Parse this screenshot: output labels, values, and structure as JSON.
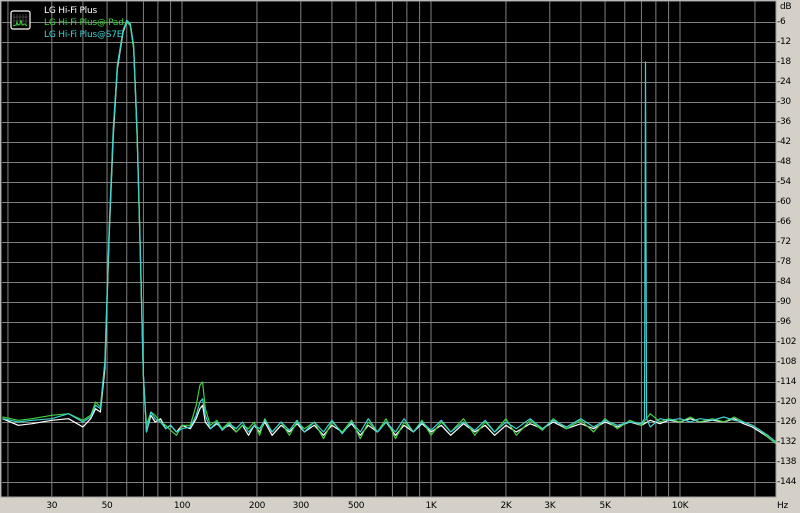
{
  "chart_data": {
    "type": "line",
    "title": "",
    "xlabel": "Hz",
    "ylabel": "dB",
    "x_scale": "log",
    "xlim": [
      19,
      24300
    ],
    "ylim": [
      -149,
      0
    ],
    "grid": true,
    "legend_placement": "top-left",
    "background_color": "#000000",
    "grid_color": "#808080",
    "x_ticks": [
      {
        "value": 30,
        "label": "30"
      },
      {
        "value": 50,
        "label": "50"
      },
      {
        "value": 100,
        "label": "100"
      },
      {
        "value": 200,
        "label": "200"
      },
      {
        "value": 300,
        "label": "300"
      },
      {
        "value": 500,
        "label": "500"
      },
      {
        "value": 1000,
        "label": "1K"
      },
      {
        "value": 2000,
        "label": "2K"
      },
      {
        "value": 3000,
        "label": "3K"
      },
      {
        "value": 5000,
        "label": "5K"
      },
      {
        "value": 10000,
        "label": "10K"
      }
    ],
    "x_gridlines": [
      20,
      30,
      40,
      50,
      60,
      70,
      80,
      90,
      100,
      200,
      300,
      400,
      500,
      600,
      700,
      800,
      900,
      1000,
      2000,
      3000,
      4000,
      5000,
      6000,
      7000,
      8000,
      9000,
      10000,
      20000
    ],
    "y_ticks": [
      -6,
      -12,
      -18,
      -24,
      -30,
      -36,
      -42,
      -48,
      -54,
      -60,
      -66,
      -72,
      -78,
      -84,
      -90,
      -96,
      -102,
      -108,
      -114,
      -120,
      -126,
      -132,
      -138,
      -144
    ],
    "y_tick_labels": [
      "-6",
      "-12",
      "-18",
      "-24",
      "-30",
      "-36",
      "-42",
      "-48",
      "-54",
      "-60",
      "-66",
      "-72",
      "-78",
      "-84",
      "-90",
      "-96",
      "-102",
      "-108",
      "-114",
      "-120",
      "-126",
      "-132",
      "-138",
      "-144"
    ],
    "series": [
      {
        "name": "LG Hi-Fi Plus",
        "color": "#ffffff",
        "points": [
          [
            19,
            -125
          ],
          [
            22,
            -127
          ],
          [
            25,
            -126.5
          ],
          [
            30,
            -125.5
          ],
          [
            35,
            -125
          ],
          [
            40,
            -127.5
          ],
          [
            43,
            -125
          ],
          [
            45,
            -122
          ],
          [
            47,
            -123
          ],
          [
            49,
            -110
          ],
          [
            51,
            -70
          ],
          [
            53,
            -40
          ],
          [
            55,
            -20
          ],
          [
            58,
            -9
          ],
          [
            60,
            -6
          ],
          [
            62,
            -7
          ],
          [
            64,
            -14
          ],
          [
            66,
            -40
          ],
          [
            68,
            -75
          ],
          [
            70,
            -112
          ],
          [
            72,
            -129
          ],
          [
            75,
            -124
          ],
          [
            78,
            -126
          ],
          [
            82,
            -125
          ],
          [
            86,
            -128
          ],
          [
            90,
            -127
          ],
          [
            95,
            -129
          ],
          [
            100,
            -127
          ],
          [
            108,
            -128
          ],
          [
            114,
            -125
          ],
          [
            118,
            -122
          ],
          [
            121,
            -121
          ],
          [
            124,
            -126
          ],
          [
            130,
            -128
          ],
          [
            138,
            -126.5
          ],
          [
            145,
            -128
          ],
          [
            155,
            -127
          ],
          [
            165,
            -129
          ],
          [
            175,
            -127
          ],
          [
            185,
            -130
          ],
          [
            195,
            -127
          ],
          [
            205,
            -129
          ],
          [
            215,
            -126
          ],
          [
            230,
            -130
          ],
          [
            250,
            -127
          ],
          [
            270,
            -129
          ],
          [
            290,
            -126.5
          ],
          [
            310,
            -129
          ],
          [
            340,
            -127
          ],
          [
            370,
            -130
          ],
          [
            400,
            -127
          ],
          [
            440,
            -129
          ],
          [
            480,
            -126.5
          ],
          [
            520,
            -130
          ],
          [
            560,
            -127
          ],
          [
            610,
            -129
          ],
          [
            660,
            -126
          ],
          [
            720,
            -130
          ],
          [
            780,
            -127
          ],
          [
            850,
            -129
          ],
          [
            920,
            -126.5
          ],
          [
            1000,
            -129
          ],
          [
            1100,
            -127
          ],
          [
            1200,
            -130
          ],
          [
            1350,
            -126.5
          ],
          [
            1500,
            -129
          ],
          [
            1650,
            -127
          ],
          [
            1800,
            -130
          ],
          [
            2000,
            -127
          ],
          [
            2200,
            -129
          ],
          [
            2500,
            -126.5
          ],
          [
            2800,
            -128
          ],
          [
            3100,
            -126
          ],
          [
            3500,
            -128
          ],
          [
            4000,
            -126.5
          ],
          [
            4500,
            -128
          ],
          [
            5000,
            -126
          ],
          [
            5600,
            -127.5
          ],
          [
            6300,
            -126
          ],
          [
            7000,
            -127
          ],
          [
            7600,
            -125.5
          ],
          [
            8300,
            -126.5
          ],
          [
            9000,
            -125.5
          ],
          [
            10000,
            -126
          ],
          [
            11000,
            -125
          ],
          [
            12000,
            -126
          ],
          [
            13500,
            -125.5
          ],
          [
            15000,
            -126
          ],
          [
            16500,
            -125
          ],
          [
            18000,
            -126.5
          ],
          [
            19500,
            -127.5
          ],
          [
            21000,
            -129
          ],
          [
            22500,
            -130.5
          ],
          [
            24300,
            -132.5
          ]
        ]
      },
      {
        "name": "LG Hi-Fi Plus@iPad",
        "color": "#40d040",
        "points": [
          [
            19,
            -124.5
          ],
          [
            22,
            -125.5
          ],
          [
            25,
            -125
          ],
          [
            30,
            -124
          ],
          [
            35,
            -123.5
          ],
          [
            40,
            -125.5
          ],
          [
            43,
            -124
          ],
          [
            45,
            -120
          ],
          [
            47,
            -121.5
          ],
          [
            49,
            -108
          ],
          [
            51,
            -68
          ],
          [
            53,
            -38
          ],
          [
            55,
            -19
          ],
          [
            58,
            -8.5
          ],
          [
            60,
            -6
          ],
          [
            62,
            -7
          ],
          [
            64,
            -14
          ],
          [
            66,
            -40
          ],
          [
            68,
            -76
          ],
          [
            70,
            -113
          ],
          [
            72,
            -127
          ],
          [
            75,
            -123
          ],
          [
            78,
            -124
          ],
          [
            82,
            -126
          ],
          [
            86,
            -127
          ],
          [
            90,
            -128.5
          ],
          [
            95,
            -130
          ],
          [
            100,
            -127
          ],
          [
            108,
            -127
          ],
          [
            114,
            -121
          ],
          [
            118,
            -115
          ],
          [
            121,
            -114
          ],
          [
            124,
            -122
          ],
          [
            130,
            -127
          ],
          [
            138,
            -125.5
          ],
          [
            145,
            -128
          ],
          [
            155,
            -126
          ],
          [
            165,
            -129
          ],
          [
            175,
            -127
          ],
          [
            185,
            -128
          ],
          [
            195,
            -126
          ],
          [
            205,
            -130
          ],
          [
            215,
            -125
          ],
          [
            230,
            -129
          ],
          [
            250,
            -126
          ],
          [
            270,
            -130
          ],
          [
            290,
            -126
          ],
          [
            310,
            -128
          ],
          [
            340,
            -126
          ],
          [
            370,
            -131
          ],
          [
            400,
            -126
          ],
          [
            440,
            -129
          ],
          [
            480,
            -125.5
          ],
          [
            520,
            -131
          ],
          [
            560,
            -126
          ],
          [
            610,
            -129
          ],
          [
            660,
            -125
          ],
          [
            720,
            -131
          ],
          [
            780,
            -126
          ],
          [
            850,
            -129
          ],
          [
            920,
            -125.5
          ],
          [
            1000,
            -130
          ],
          [
            1100,
            -126
          ],
          [
            1200,
            -129
          ],
          [
            1350,
            -125
          ],
          [
            1500,
            -130
          ],
          [
            1650,
            -126
          ],
          [
            1800,
            -129
          ],
          [
            2000,
            -125
          ],
          [
            2200,
            -130
          ],
          [
            2500,
            -125.5
          ],
          [
            2800,
            -128.5
          ],
          [
            3100,
            -125
          ],
          [
            3500,
            -128
          ],
          [
            4000,
            -125.5
          ],
          [
            4500,
            -129
          ],
          [
            5000,
            -125
          ],
          [
            5600,
            -128
          ],
          [
            6300,
            -125.5
          ],
          [
            7000,
            -127
          ],
          [
            7600,
            -123.5
          ],
          [
            8300,
            -126
          ],
          [
            9000,
            -125
          ],
          [
            10000,
            -126
          ],
          [
            11000,
            -124.5
          ],
          [
            12000,
            -126
          ],
          [
            13500,
            -125
          ],
          [
            15000,
            -126
          ],
          [
            16500,
            -124.5
          ],
          [
            18000,
            -126
          ],
          [
            19500,
            -127
          ],
          [
            21000,
            -128.5
          ],
          [
            22500,
            -130.5
          ],
          [
            24300,
            -132.5
          ]
        ]
      },
      {
        "name": "LG Hi-Fi Plus@S7E",
        "color": "#40d0d0",
        "points": [
          [
            19,
            -125
          ],
          [
            22,
            -126
          ],
          [
            25,
            -125.5
          ],
          [
            30,
            -125
          ],
          [
            35,
            -123.5
          ],
          [
            40,
            -126
          ],
          [
            43,
            -124.5
          ],
          [
            45,
            -121
          ],
          [
            47,
            -122
          ],
          [
            49,
            -108
          ],
          [
            51,
            -68
          ],
          [
            53,
            -38
          ],
          [
            55,
            -19
          ],
          [
            58,
            -8.5
          ],
          [
            60,
            -5.5
          ],
          [
            62,
            -6.5
          ],
          [
            64,
            -13
          ],
          [
            66,
            -38
          ],
          [
            68,
            -74
          ],
          [
            70,
            -112
          ],
          [
            72,
            -129
          ],
          [
            75,
            -123
          ],
          [
            78,
            -125
          ],
          [
            82,
            -126
          ],
          [
            86,
            -128
          ],
          [
            90,
            -127
          ],
          [
            95,
            -129
          ],
          [
            100,
            -128
          ],
          [
            108,
            -127.5
          ],
          [
            114,
            -124
          ],
          [
            118,
            -120
          ],
          [
            121,
            -119
          ],
          [
            124,
            -124
          ],
          [
            130,
            -128
          ],
          [
            138,
            -126
          ],
          [
            145,
            -128.5
          ],
          [
            155,
            -126.5
          ],
          [
            165,
            -128
          ],
          [
            175,
            -126
          ],
          [
            185,
            -129
          ],
          [
            195,
            -127
          ],
          [
            205,
            -128
          ],
          [
            215,
            -125.5
          ],
          [
            230,
            -129
          ],
          [
            250,
            -126
          ],
          [
            270,
            -128.5
          ],
          [
            290,
            -125.5
          ],
          [
            310,
            -129
          ],
          [
            340,
            -126
          ],
          [
            370,
            -129
          ],
          [
            400,
            -125.5
          ],
          [
            440,
            -129.5
          ],
          [
            480,
            -126
          ],
          [
            520,
            -129
          ],
          [
            560,
            -125
          ],
          [
            610,
            -129
          ],
          [
            660,
            -126
          ],
          [
            720,
            -129
          ],
          [
            780,
            -125
          ],
          [
            850,
            -129
          ],
          [
            920,
            -126
          ],
          [
            1000,
            -128.5
          ],
          [
            1100,
            -125.5
          ],
          [
            1200,
            -129
          ],
          [
            1350,
            -126
          ],
          [
            1500,
            -128.5
          ],
          [
            1650,
            -125.5
          ],
          [
            1800,
            -129
          ],
          [
            2000,
            -126
          ],
          [
            2200,
            -128
          ],
          [
            2500,
            -125
          ],
          [
            2800,
            -128
          ],
          [
            3100,
            -125.5
          ],
          [
            3500,
            -127.5
          ],
          [
            4000,
            -125
          ],
          [
            4500,
            -127.5
          ],
          [
            5000,
            -125.5
          ],
          [
            5600,
            -127
          ],
          [
            6300,
            -126
          ],
          [
            7000,
            -126.5
          ],
          [
            7200,
            -125
          ],
          [
            7270,
            -18
          ],
          [
            7340,
            -125
          ],
          [
            7600,
            -127.5
          ],
          [
            8300,
            -125
          ],
          [
            9000,
            -125.5
          ],
          [
            10000,
            -125
          ],
          [
            11000,
            -126
          ],
          [
            12000,
            -125
          ],
          [
            13500,
            -125.5
          ],
          [
            15000,
            -124.5
          ],
          [
            16500,
            -125.5
          ],
          [
            18000,
            -126
          ],
          [
            19500,
            -127
          ],
          [
            21000,
            -128.5
          ],
          [
            22500,
            -130
          ],
          [
            24300,
            -132
          ]
        ]
      }
    ]
  }
}
